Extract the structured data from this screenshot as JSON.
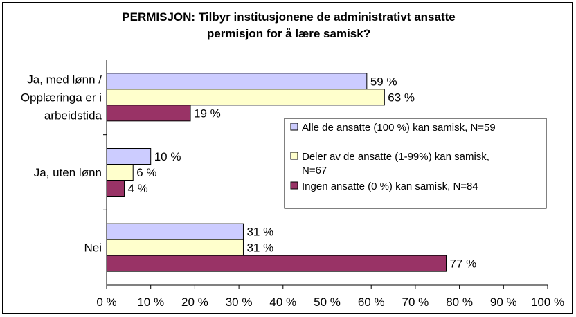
{
  "chart_data": {
    "type": "bar",
    "orientation": "horizontal",
    "title": "PERMISJON: Tilbyr institusjonene de administrativt ansatte permisjon for å lære samisk?",
    "title_lines": [
      "PERMISJON: Tilbyr institusjonene de administrativt ansatte",
      "permisjon for å lære samisk?"
    ],
    "categories": [
      "Ja, med lønn / Opplæringa er i arbeidstida",
      "Ja, uten lønn",
      "Nei"
    ],
    "category_lines": [
      [
        "Ja, med lønn /",
        "Opplæringa er i",
        "arbeidstida"
      ],
      [
        "Ja, uten lønn"
      ],
      [
        "Nei"
      ]
    ],
    "series": [
      {
        "name": "Alle de ansatte (100 %) kan samisk, N=59",
        "name_lines": [
          "Alle de ansatte (100 %) kan samisk, N=59"
        ],
        "values": [
          59,
          10,
          31
        ],
        "labels": [
          "59 %",
          "10 %",
          "31 %"
        ],
        "color": "#ccccff"
      },
      {
        "name": "Deler av de ansatte (1-99%) kan samisk, N=67",
        "name_lines": [
          "Deler av de ansatte (1-99%) kan samisk,",
          "N=67"
        ],
        "values": [
          63,
          6,
          31
        ],
        "labels": [
          "63 %",
          "6 %",
          "31 %"
        ],
        "color": "#ffffcc"
      },
      {
        "name": "Ingen ansatte (0 %) kan samisk, N=84",
        "name_lines": [
          "Ingen ansatte (0 %) kan samisk, N=84"
        ],
        "values": [
          19,
          4,
          77
        ],
        "labels": [
          "19 %",
          "4 %",
          "77 %"
        ],
        "color": "#993366"
      }
    ],
    "xlim": [
      0,
      100
    ],
    "xticks": [
      0,
      10,
      20,
      30,
      40,
      50,
      60,
      70,
      80,
      90,
      100
    ],
    "xtick_labels": [
      "0 %",
      "10 %",
      "20 %",
      "30 %",
      "40 %",
      "50 %",
      "60 %",
      "70 %",
      "80 %",
      "90 %",
      "100 %"
    ],
    "grid": false,
    "legend_position": "right"
  }
}
